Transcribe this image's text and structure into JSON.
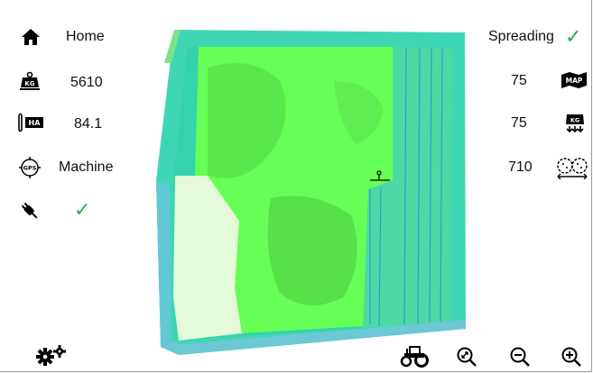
{
  "left_panel": {
    "home_label": "Home",
    "kg_value": "5610",
    "ha_value": "84.1",
    "gps_label": "Machine",
    "connection_status": "✓"
  },
  "right_panel": {
    "mode_label": "Spreading",
    "mode_status": "✓",
    "map_rate_value": "75",
    "kg_rate_value": "75",
    "spread_width_value": "710"
  },
  "icons": {
    "home": "home-icon",
    "kg": "weight-kg-icon",
    "ha": "area-ha-icon",
    "gps": "gps-icon",
    "plug": "plug-icon",
    "settings": "settings-icon",
    "tractor": "tractor-icon",
    "zoom_fit": "zoom-fit-icon",
    "zoom_out": "zoom-out-icon",
    "zoom_in": "zoom-in-icon",
    "map": "map-icon",
    "kg_rate": "kg-rate-icon",
    "spread": "spread-width-icon"
  },
  "colors": {
    "accent_check": "#22b14c",
    "field_green": "#66ff55",
    "field_teal": "#3ec9a0",
    "field_light": "#e4fad8"
  }
}
